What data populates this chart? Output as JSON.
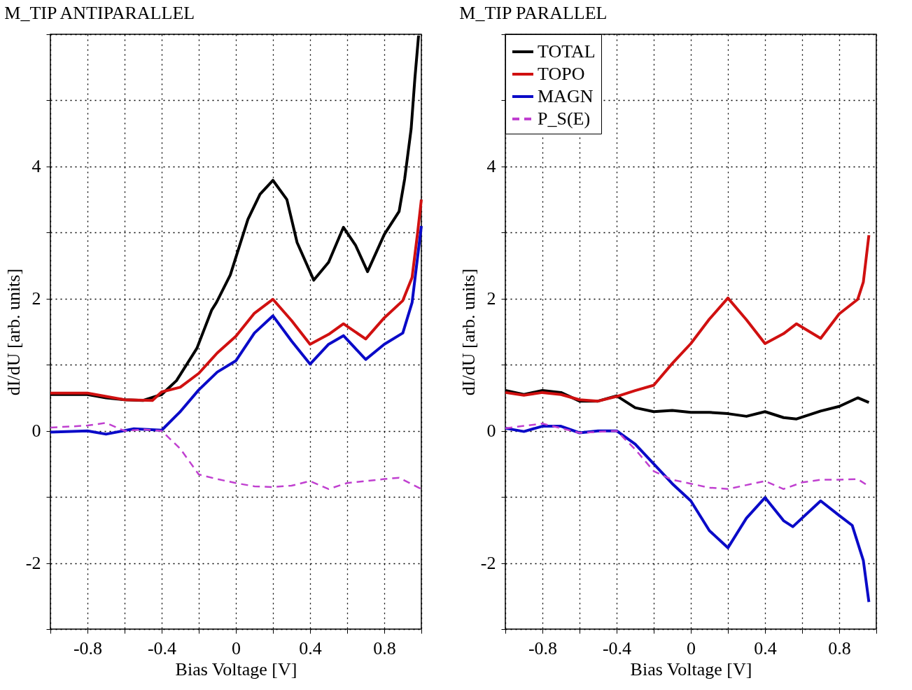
{
  "chart_data": [
    {
      "type": "line",
      "title": "M_TIP ANTIPARALLEL",
      "xlabel": "Bias Voltage [V]",
      "ylabel": "dI/dU [arb. units]",
      "xlim": [
        -1,
        1
      ],
      "ylim": [
        -3,
        6
      ],
      "xticks": [
        {
          "value": -1,
          "label": null
        },
        -0.8,
        {
          "value": -0.6,
          "label": null
        },
        -0.4,
        {
          "value": -0.2,
          "label": null
        },
        0,
        {
          "value": 0.2,
          "label": null
        },
        0.4,
        {
          "value": 0.6,
          "label": null
        },
        0.8,
        {
          "value": 1,
          "label": null
        }
      ],
      "yticks": [
        {
          "value": -3,
          "label": null
        },
        -2,
        {
          "value": -1,
          "label": null
        },
        0,
        {
          "value": 1,
          "label": null
        },
        2,
        {
          "value": 3,
          "label": null
        },
        4,
        {
          "value": 5,
          "label": null
        },
        {
          "value": 6,
          "label": null
        }
      ],
      "grid": true,
      "legend": false,
      "series": [
        {
          "color": "#000000",
          "line_style": "solid",
          "x": [
            -1,
            -0.8,
            -0.7,
            -0.6,
            -0.5,
            -0.4,
            -0.32,
            -0.21,
            -0.13,
            -0.105,
            -0.03,
            0.065,
            0.13,
            0.2,
            0.275,
            0.33,
            0.42,
            0.5,
            0.58,
            0.645,
            0.71,
            0.8,
            0.88,
            0.91,
            0.945,
            0.965,
            0.985
          ],
          "values": [
            0.55,
            0.55,
            0.5,
            0.47,
            0.46,
            0.55,
            0.76,
            1.25,
            1.83,
            1.94,
            2.36,
            3.2,
            3.58,
            3.79,
            3.5,
            2.85,
            2.28,
            2.55,
            3.08,
            2.81,
            2.41,
            2.97,
            3.32,
            3.81,
            4.57,
            5.33,
            5.98
          ]
        },
        {
          "color": "#d01010",
          "line_style": "solid",
          "x": [
            -1,
            -0.8,
            -0.7,
            -0.6,
            -0.45,
            -0.4,
            -0.3,
            -0.2,
            -0.1,
            0,
            0.1,
            0.2,
            0.3,
            0.4,
            0.5,
            0.58,
            0.7,
            0.8,
            0.9,
            0.95,
            0.98,
            1
          ],
          "values": [
            0.57,
            0.57,
            0.52,
            0.47,
            0.46,
            0.59,
            0.66,
            0.87,
            1.18,
            1.43,
            1.78,
            1.99,
            1.67,
            1.31,
            1.46,
            1.62,
            1.39,
            1.71,
            1.97,
            2.32,
            3.0,
            3.5
          ]
        },
        {
          "color": "#0a0ac8",
          "line_style": "solid",
          "x": [
            -1,
            -0.8,
            -0.7,
            -0.55,
            -0.4,
            -0.3,
            -0.2,
            -0.1,
            0,
            0.1,
            0.2,
            0.3,
            0.4,
            0.5,
            0.58,
            0.7,
            0.8,
            0.9,
            0.95,
            1
          ],
          "values": [
            -0.02,
            0,
            -0.05,
            0.03,
            0.01,
            0.29,
            0.62,
            0.89,
            1.06,
            1.48,
            1.74,
            1.36,
            1.01,
            1.31,
            1.44,
            1.08,
            1.31,
            1.48,
            1.94,
            3.1
          ]
        },
        {
          "color": "#c040d0",
          "line_style": "dashed",
          "x": [
            -1,
            -0.8,
            -0.7,
            -0.6,
            -0.5,
            -0.4,
            -0.3,
            -0.2,
            -0.1,
            0,
            0.1,
            0.2,
            0.3,
            0.4,
            0.5,
            0.6,
            0.7,
            0.8,
            0.88,
            1
          ],
          "values": [
            0.05,
            0.08,
            0.12,
            0.0,
            0.02,
            0,
            -0.27,
            -0.66,
            -0.73,
            -0.79,
            -0.84,
            -0.85,
            -0.83,
            -0.76,
            -0.88,
            -0.79,
            -0.76,
            -0.73,
            -0.71,
            -0.88
          ]
        }
      ]
    },
    {
      "type": "line",
      "title": "M_TIP PARALLEL",
      "xlabel": "Bias Voltage [V]",
      "ylabel": "dI/dU [arb. units]",
      "xlim": [
        -1,
        1
      ],
      "ylim": [
        -3,
        6
      ],
      "xticks": [
        {
          "value": -1,
          "label": null
        },
        -0.8,
        {
          "value": -0.6,
          "label": null
        },
        -0.4,
        {
          "value": -0.2,
          "label": null
        },
        0,
        {
          "value": 0.2,
          "label": null
        },
        0.4,
        {
          "value": 0.6,
          "label": null
        },
        0.8,
        {
          "value": 1,
          "label": null
        }
      ],
      "yticks": [
        {
          "value": -3,
          "label": null
        },
        -2,
        {
          "value": -1,
          "label": null
        },
        0,
        {
          "value": 1,
          "label": null
        },
        2,
        {
          "value": 3,
          "label": null
        },
        4,
        {
          "value": 5,
          "label": null
        },
        {
          "value": 6,
          "label": null
        }
      ],
      "grid": true,
      "legend": "top left",
      "series": [
        {
          "name": "TOTAL",
          "color": "#000000",
          "line_style": "solid",
          "x": [
            -1,
            -0.9,
            -0.8,
            -0.7,
            -0.6,
            -0.5,
            -0.4,
            -0.3,
            -0.2,
            -0.1,
            0,
            0.1,
            0.2,
            0.3,
            0.4,
            0.5,
            0.57,
            0.7,
            0.8,
            0.9,
            0.96
          ],
          "values": [
            0.61,
            0.55,
            0.61,
            0.58,
            0.45,
            0.45,
            0.53,
            0.35,
            0.29,
            0.31,
            0.28,
            0.28,
            0.26,
            0.22,
            0.29,
            0.2,
            0.18,
            0.3,
            0.37,
            0.5,
            0.43
          ]
        },
        {
          "name": "TOPO",
          "color": "#d01010",
          "line_style": "solid",
          "x": [
            -1,
            -0.9,
            -0.8,
            -0.7,
            -0.6,
            -0.5,
            -0.4,
            -0.3,
            -0.2,
            -0.1,
            0,
            0.1,
            0.2,
            0.3,
            0.4,
            0.5,
            0.57,
            0.7,
            0.8,
            0.9,
            0.93,
            0.96
          ],
          "values": [
            0.58,
            0.54,
            0.58,
            0.55,
            0.47,
            0.45,
            0.52,
            0.61,
            0.69,
            1.02,
            1.32,
            1.69,
            2.01,
            1.68,
            1.32,
            1.47,
            1.62,
            1.4,
            1.77,
            1.99,
            2.25,
            2.96
          ]
        },
        {
          "name": "MAGN",
          "color": "#0a0ac8",
          "line_style": "solid",
          "x": [
            -1,
            -0.9,
            -0.8,
            -0.7,
            -0.6,
            -0.5,
            -0.4,
            -0.3,
            -0.2,
            -0.1,
            0,
            0.1,
            0.2,
            0.3,
            0.4,
            0.5,
            0.55,
            0.7,
            0.8,
            0.87,
            0.93,
            0.96
          ],
          "values": [
            0.04,
            -0.01,
            0.07,
            0.07,
            -0.03,
            0,
            0,
            -0.2,
            -0.5,
            -0.8,
            -1.06,
            -1.51,
            -1.77,
            -1.32,
            -1.01,
            -1.36,
            -1.45,
            -1.06,
            -1.28,
            -1.43,
            -1.96,
            -2.59
          ]
        },
        {
          "name": "P_S(E)",
          "color": "#c040d0",
          "line_style": "dashed",
          "x": [
            -1,
            -0.8,
            -0.6,
            -0.4,
            -0.3,
            -0.2,
            -0.1,
            0,
            0.1,
            0.2,
            0.3,
            0.4,
            0.5,
            0.6,
            0.7,
            0.8,
            0.9,
            0.96
          ],
          "values": [
            0.04,
            0.11,
            -0.03,
            0,
            -0.28,
            -0.61,
            -0.74,
            -0.8,
            -0.86,
            -0.88,
            -0.82,
            -0.76,
            -0.88,
            -0.78,
            -0.74,
            -0.74,
            -0.73,
            -0.84
          ]
        }
      ]
    }
  ]
}
